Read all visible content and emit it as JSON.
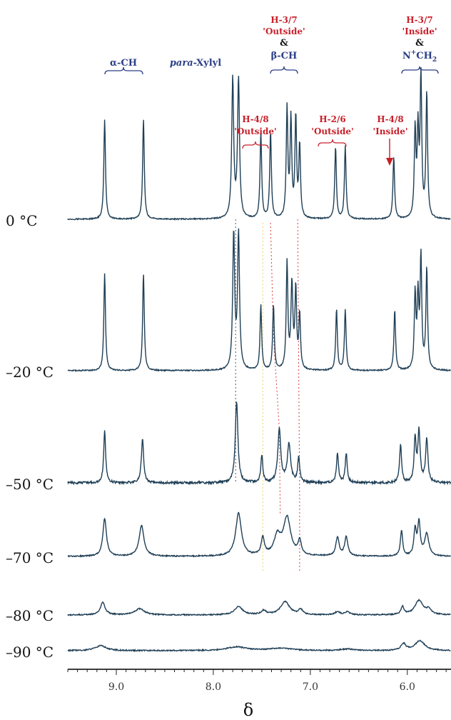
{
  "chart_data": {
    "type": "line",
    "xlabel": "δ",
    "xlim": [
      9.5,
      5.55
    ],
    "x_ticks": [
      "9.0",
      "8.0",
      "7.0",
      "6.0"
    ],
    "x_tick_values": [
      9.0,
      8.0,
      7.0,
      6.0
    ],
    "colors": {
      "blue_label": "#2c3f86",
      "red_label": "#c8202a",
      "trace": "#1f3f56",
      "dash_red": "#d84040",
      "dash_yellow": "#e8d85a",
      "dash_dark": "#555555"
    },
    "annotations": {
      "alpha_ch": "α-CH",
      "para_xylyl_italic": "para",
      "para_xylyl_rest": "-Xylyl",
      "h37_outside_1": "H-3/7",
      "h37_outside_2": "'Outside'",
      "amp_1": "&",
      "beta_ch": "β-CH",
      "h48_outside_1": "H-4/8",
      "h48_outside_2": "'Outside'",
      "h26_outside_1": "H-2/6",
      "h26_outside_2": "'Outside'",
      "h48_inside_1": "H-4/8",
      "h48_inside_2": "'Inside'",
      "h37_inside_1": "H-3/7",
      "h37_inside_2": "'Inside'",
      "amp_2": "&",
      "nch2_n": "N",
      "nch2_plus": "+",
      "nch2_ch": "CH",
      "nch2_sub": "2"
    },
    "series": [
      {
        "name": "0 °C",
        "peaks": [
          [
            9.12,
            0.72,
            0.01
          ],
          [
            8.72,
            0.72,
            0.01
          ],
          [
            7.8,
            1.0,
            0.012
          ],
          [
            7.74,
            1.0,
            0.012
          ],
          [
            7.51,
            0.62,
            0.01
          ],
          [
            7.41,
            0.62,
            0.01
          ],
          [
            7.24,
            0.78,
            0.01
          ],
          [
            7.2,
            0.7,
            0.01
          ],
          [
            7.15,
            0.72,
            0.01
          ],
          [
            7.11,
            0.52,
            0.01
          ],
          [
            6.74,
            0.52,
            0.01
          ],
          [
            6.64,
            0.52,
            0.01
          ],
          [
            6.14,
            0.45,
            0.01
          ],
          [
            5.92,
            0.62,
            0.01
          ],
          [
            5.89,
            0.6,
            0.01
          ],
          [
            5.86,
            1.0,
            0.01
          ],
          [
            5.8,
            0.9,
            0.01
          ]
        ]
      },
      {
        "name": "-20 °C",
        "peaks": [
          [
            9.12,
            0.72,
            0.01
          ],
          [
            8.72,
            0.72,
            0.01
          ],
          [
            7.79,
            1.0,
            0.012
          ],
          [
            7.74,
            1.0,
            0.012
          ],
          [
            7.51,
            0.48,
            0.01
          ],
          [
            7.38,
            0.48,
            0.01
          ],
          [
            7.24,
            0.78,
            0.01
          ],
          [
            7.19,
            0.62,
            0.012
          ],
          [
            7.15,
            0.58,
            0.01
          ],
          [
            7.11,
            0.4,
            0.01
          ],
          [
            6.73,
            0.45,
            0.01
          ],
          [
            6.64,
            0.45,
            0.01
          ],
          [
            6.13,
            0.45,
            0.01
          ],
          [
            5.92,
            0.55,
            0.01
          ],
          [
            5.89,
            0.52,
            0.01
          ],
          [
            5.86,
            0.82,
            0.01
          ],
          [
            5.8,
            0.75,
            0.01
          ]
        ]
      },
      {
        "name": "-50 °C",
        "peaks": [
          [
            9.12,
            0.58,
            0.012
          ],
          [
            8.73,
            0.48,
            0.014
          ],
          [
            7.76,
            0.9,
            0.016
          ],
          [
            7.5,
            0.3,
            0.012
          ],
          [
            7.32,
            0.58,
            0.018
          ],
          [
            7.22,
            0.42,
            0.02
          ],
          [
            7.12,
            0.28,
            0.012
          ],
          [
            6.72,
            0.32,
            0.012
          ],
          [
            6.63,
            0.32,
            0.012
          ],
          [
            6.07,
            0.42,
            0.012
          ],
          [
            5.92,
            0.48,
            0.012
          ],
          [
            5.88,
            0.55,
            0.014
          ],
          [
            5.8,
            0.48,
            0.014
          ]
        ]
      },
      {
        "name": "-70 °C",
        "peaks": [
          [
            9.12,
            0.44,
            0.022
          ],
          [
            8.74,
            0.36,
            0.03
          ],
          [
            7.74,
            0.5,
            0.035
          ],
          [
            7.49,
            0.2,
            0.02
          ],
          [
            7.34,
            0.22,
            0.04
          ],
          [
            7.24,
            0.44,
            0.045
          ],
          [
            7.11,
            0.16,
            0.02
          ],
          [
            6.72,
            0.22,
            0.02
          ],
          [
            6.63,
            0.22,
            0.02
          ],
          [
            6.06,
            0.3,
            0.014
          ],
          [
            5.92,
            0.3,
            0.015
          ],
          [
            5.88,
            0.38,
            0.016
          ],
          [
            5.8,
            0.26,
            0.025
          ]
        ]
      },
      {
        "name": "-80 °C",
        "peaks": [
          [
            9.14,
            0.24,
            0.03
          ],
          [
            8.76,
            0.12,
            0.06
          ],
          [
            7.74,
            0.16,
            0.05
          ],
          [
            7.48,
            0.08,
            0.03
          ],
          [
            7.26,
            0.26,
            0.055
          ],
          [
            7.1,
            0.1,
            0.025
          ],
          [
            6.72,
            0.06,
            0.03
          ],
          [
            6.62,
            0.06,
            0.03
          ],
          [
            6.05,
            0.16,
            0.018
          ],
          [
            5.88,
            0.28,
            0.05
          ],
          [
            5.78,
            0.1,
            0.03
          ]
        ]
      },
      {
        "name": "-90 °C",
        "peaks": [
          [
            9.16,
            0.12,
            0.07
          ],
          [
            7.76,
            0.09,
            0.12
          ],
          [
            7.3,
            0.06,
            0.14
          ],
          [
            6.62,
            0.04,
            0.08
          ],
          [
            6.04,
            0.16,
            0.03
          ],
          [
            5.87,
            0.24,
            0.06
          ]
        ]
      }
    ]
  }
}
